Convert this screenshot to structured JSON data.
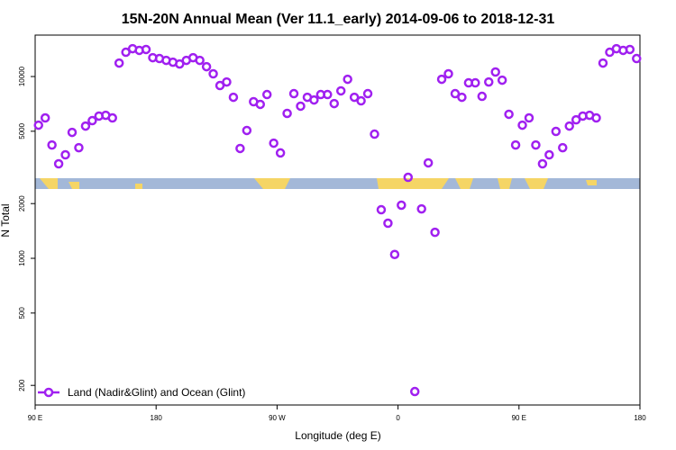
{
  "chart_data": {
    "type": "scatter",
    "title": "15N-20N Annual Mean (Ver 11.1_early)   2014-09-06 to 2018-12-31",
    "x_label": "Longitude (deg E)",
    "y_label": "N Total",
    "log_y": true,
    "legend_position": "lower left",
    "xlim": [
      90,
      540
    ],
    "xticks": [
      {
        "value": 90,
        "label": "90 E"
      },
      180,
      {
        "value": 270,
        "label": "90 W"
      },
      {
        "value": 360,
        "label": "0"
      },
      {
        "value": 450,
        "label": "90 E"
      },
      {
        "value": 540,
        "label": "180"
      }
    ],
    "ylim": [
      156,
      16900
    ],
    "yticks": [
      200,
      500,
      1000,
      2000,
      5000,
      10000
    ],
    "series": [
      {
        "name": "Land (Nadir&Glint) and Ocean (Glint)",
        "color": "#a020f0",
        "x": [
          92.5,
          97.5,
          102.5,
          107.5,
          112.5,
          117.5,
          122.5,
          127.5,
          132.5,
          137.5,
          142.5,
          147.5,
          152.5,
          157.5,
          162.5,
          167.5,
          172.5,
          177.5,
          182.5,
          187.5,
          192.5,
          197.5,
          202.5,
          207.5,
          212.5,
          217.5,
          222.5,
          227.5,
          232.5,
          237.5,
          242.5,
          247.5,
          252.5,
          257.5,
          262.5,
          267.5,
          272.5,
          277.5,
          282.5,
          287.5,
          292.5,
          297.5,
          302.5,
          307.5,
          312.5,
          317.5,
          322.5,
          327.5,
          332.5,
          337.5,
          342.5,
          347.5,
          352.5,
          357.5,
          362.5,
          367.5,
          372.5,
          377.5,
          382.5,
          387.5,
          392.5,
          397.5,
          402.5,
          407.5,
          412.5,
          417.5,
          422.5,
          427.5,
          432.5,
          437.5,
          442.5,
          447.5,
          452.5,
          457.5,
          462.5,
          467.5,
          472.5,
          477.5,
          482.5,
          487.5,
          492.5,
          497.5,
          502.5,
          507.5,
          512.5,
          517.5,
          522.5,
          527.5,
          532.5,
          537.5
        ],
        "values": [
          5400,
          5920,
          4200,
          3310,
          3710,
          4930,
          4060,
          5340,
          5720,
          6060,
          6120,
          5920,
          11860,
          13600,
          14230,
          13930,
          14090,
          12700,
          12560,
          12270,
          11990,
          11720,
          12270,
          12700,
          12270,
          11330,
          10350,
          8920,
          9330,
          7690,
          4020,
          5050,
          7270,
          7030,
          7960,
          4300,
          3800,
          6270,
          8050,
          6870,
          7690,
          7430,
          7960,
          7960,
          7100,
          8340,
          9660,
          7690,
          7350,
          8050,
          4820,
          1850,
          1560,
          1050,
          1960,
          2790,
          185,
          1870,
          3350,
          1390,
          9660,
          10350,
          8050,
          7690,
          9230,
          9230,
          7780,
          9330,
          10590,
          9550,
          6200,
          4200,
          5400,
          5920,
          4200,
          3310,
          3710,
          4990,
          4060,
          5340,
          5780,
          6060,
          6120,
          5920,
          11860,
          13600,
          14230,
          13930,
          14090,
          12560
        ]
      }
    ]
  }
}
